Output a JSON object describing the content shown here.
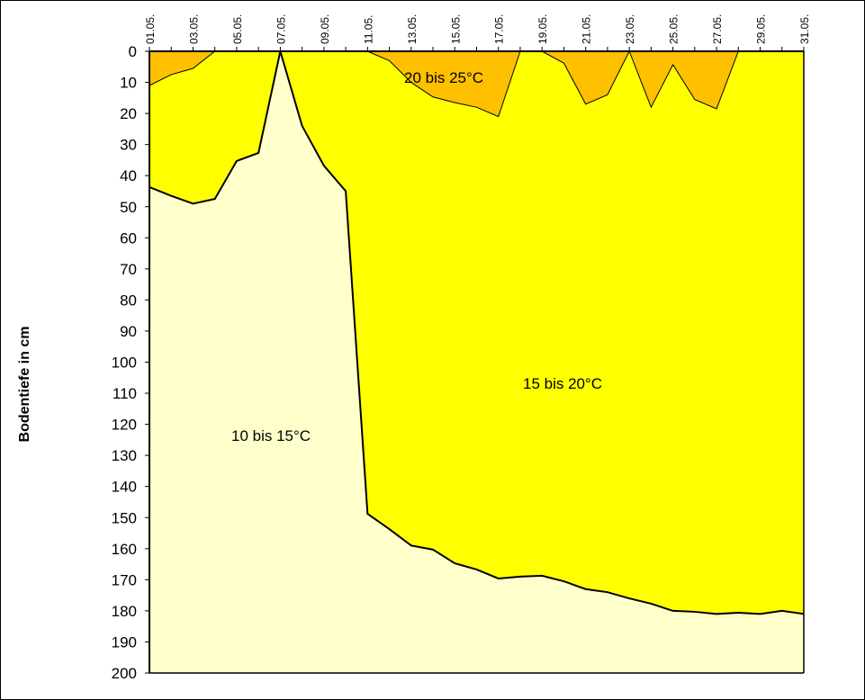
{
  "chart_data": {
    "type": "area",
    "title": "",
    "xlabel": "",
    "ylabel": "Bodentiefe in cm",
    "ylim": [
      0,
      200
    ],
    "y_inverted": true,
    "y_ticks": [
      0,
      10,
      20,
      30,
      40,
      50,
      60,
      70,
      80,
      90,
      100,
      110,
      120,
      130,
      140,
      150,
      160,
      170,
      180,
      190,
      200
    ],
    "x": [
      1,
      2,
      3,
      4,
      5,
      6,
      7,
      8,
      9,
      10,
      11,
      12,
      13,
      14,
      15,
      16,
      17,
      18,
      19,
      20,
      21,
      22,
      23,
      24,
      25,
      26,
      27,
      28,
      29,
      30,
      31
    ],
    "x_tick_labels": [
      "01.05.",
      "03.05.",
      "05.05.",
      "07.05.",
      "09.05.",
      "11.05.",
      "13.05.",
      "15.05.",
      "17.05.",
      "19.05.",
      "21.05.",
      "23.05.",
      "25.05.",
      "27.05.",
      "29.05.",
      "31.05."
    ],
    "series": [
      {
        "name": "20 bis 25°C",
        "color": "#FFC000",
        "lower_boundary_depth_cm": [
          11,
          7.5,
          5.5,
          0,
          0,
          0,
          0,
          0,
          0,
          0,
          0,
          3,
          10,
          14.7,
          16.5,
          18,
          21,
          0,
          0,
          3.8,
          17,
          14,
          0,
          18,
          4.3,
          15.5,
          18.5,
          0,
          0,
          0,
          0
        ]
      },
      {
        "name": "15 bis 20°C",
        "color": "#FFFF00",
        "lower_boundary_depth_cm": [
          43.7,
          46.5,
          49,
          47.5,
          35.3,
          32.7,
          0,
          24,
          36.8,
          45,
          148.8,
          153.7,
          159,
          160.3,
          164.7,
          166.7,
          169.6,
          169,
          168.7,
          170.5,
          173,
          174,
          176,
          177.7,
          180,
          180.3,
          181,
          180.6,
          181,
          180,
          181
        ]
      },
      {
        "name": "10 bis 15°C",
        "color": "#FFFFCC"
      }
    ],
    "annotations": [
      "20 bis 25°C",
      "15 bis 20°C",
      "10 bis 15°C"
    ],
    "grid": false,
    "legend": "none"
  }
}
